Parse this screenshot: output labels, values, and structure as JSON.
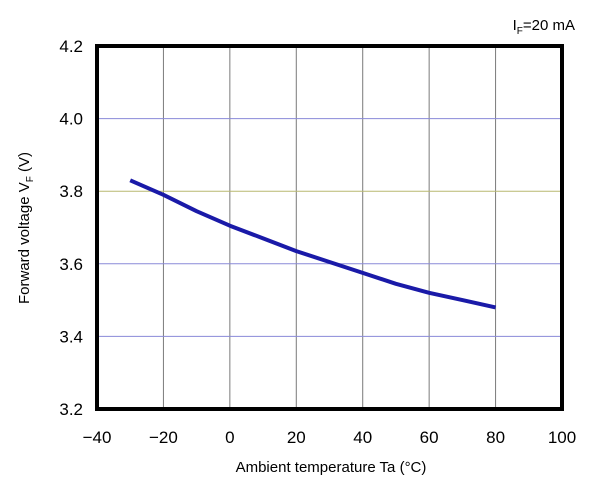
{
  "chart_data": {
    "type": "line",
    "condition": {
      "base": "I",
      "sub": "F",
      "rest": "=20 mA"
    },
    "xlabel": "Ambient temperature Ta (°C)",
    "ylabel": {
      "base": "Forward voltage V",
      "sub": "F",
      "rest": " (V)"
    },
    "xlim": [
      -40,
      100
    ],
    "ylim": [
      3.2,
      4.2
    ],
    "x_ticks": [
      -40,
      -20,
      0,
      20,
      40,
      60,
      80,
      100
    ],
    "x_tick_labels": [
      "−40",
      "−20",
      "0",
      "20",
      "40",
      "60",
      "80",
      "100"
    ],
    "y_ticks": [
      3.2,
      3.4,
      3.6,
      3.8,
      4.0,
      4.2
    ],
    "y_tick_labels": [
      "3.2",
      "3.4",
      "3.6",
      "3.8",
      "4.0",
      "4.2"
    ],
    "grid": true,
    "colors": {
      "series": "#1a1aa8",
      "vgrid": "#7a7a7a",
      "hgrid_default": "#8a8ad8",
      "hgrid_3_8": "#b8b870",
      "frame": "#000000"
    },
    "series": [
      {
        "x": [
          -30,
          -20,
          -10,
          0,
          10,
          20,
          30,
          40,
          50,
          60,
          70,
          80
        ],
        "y": [
          3.83,
          3.79,
          3.745,
          3.705,
          3.67,
          3.635,
          3.605,
          3.575,
          3.545,
          3.52,
          3.5,
          3.48
        ]
      }
    ]
  }
}
